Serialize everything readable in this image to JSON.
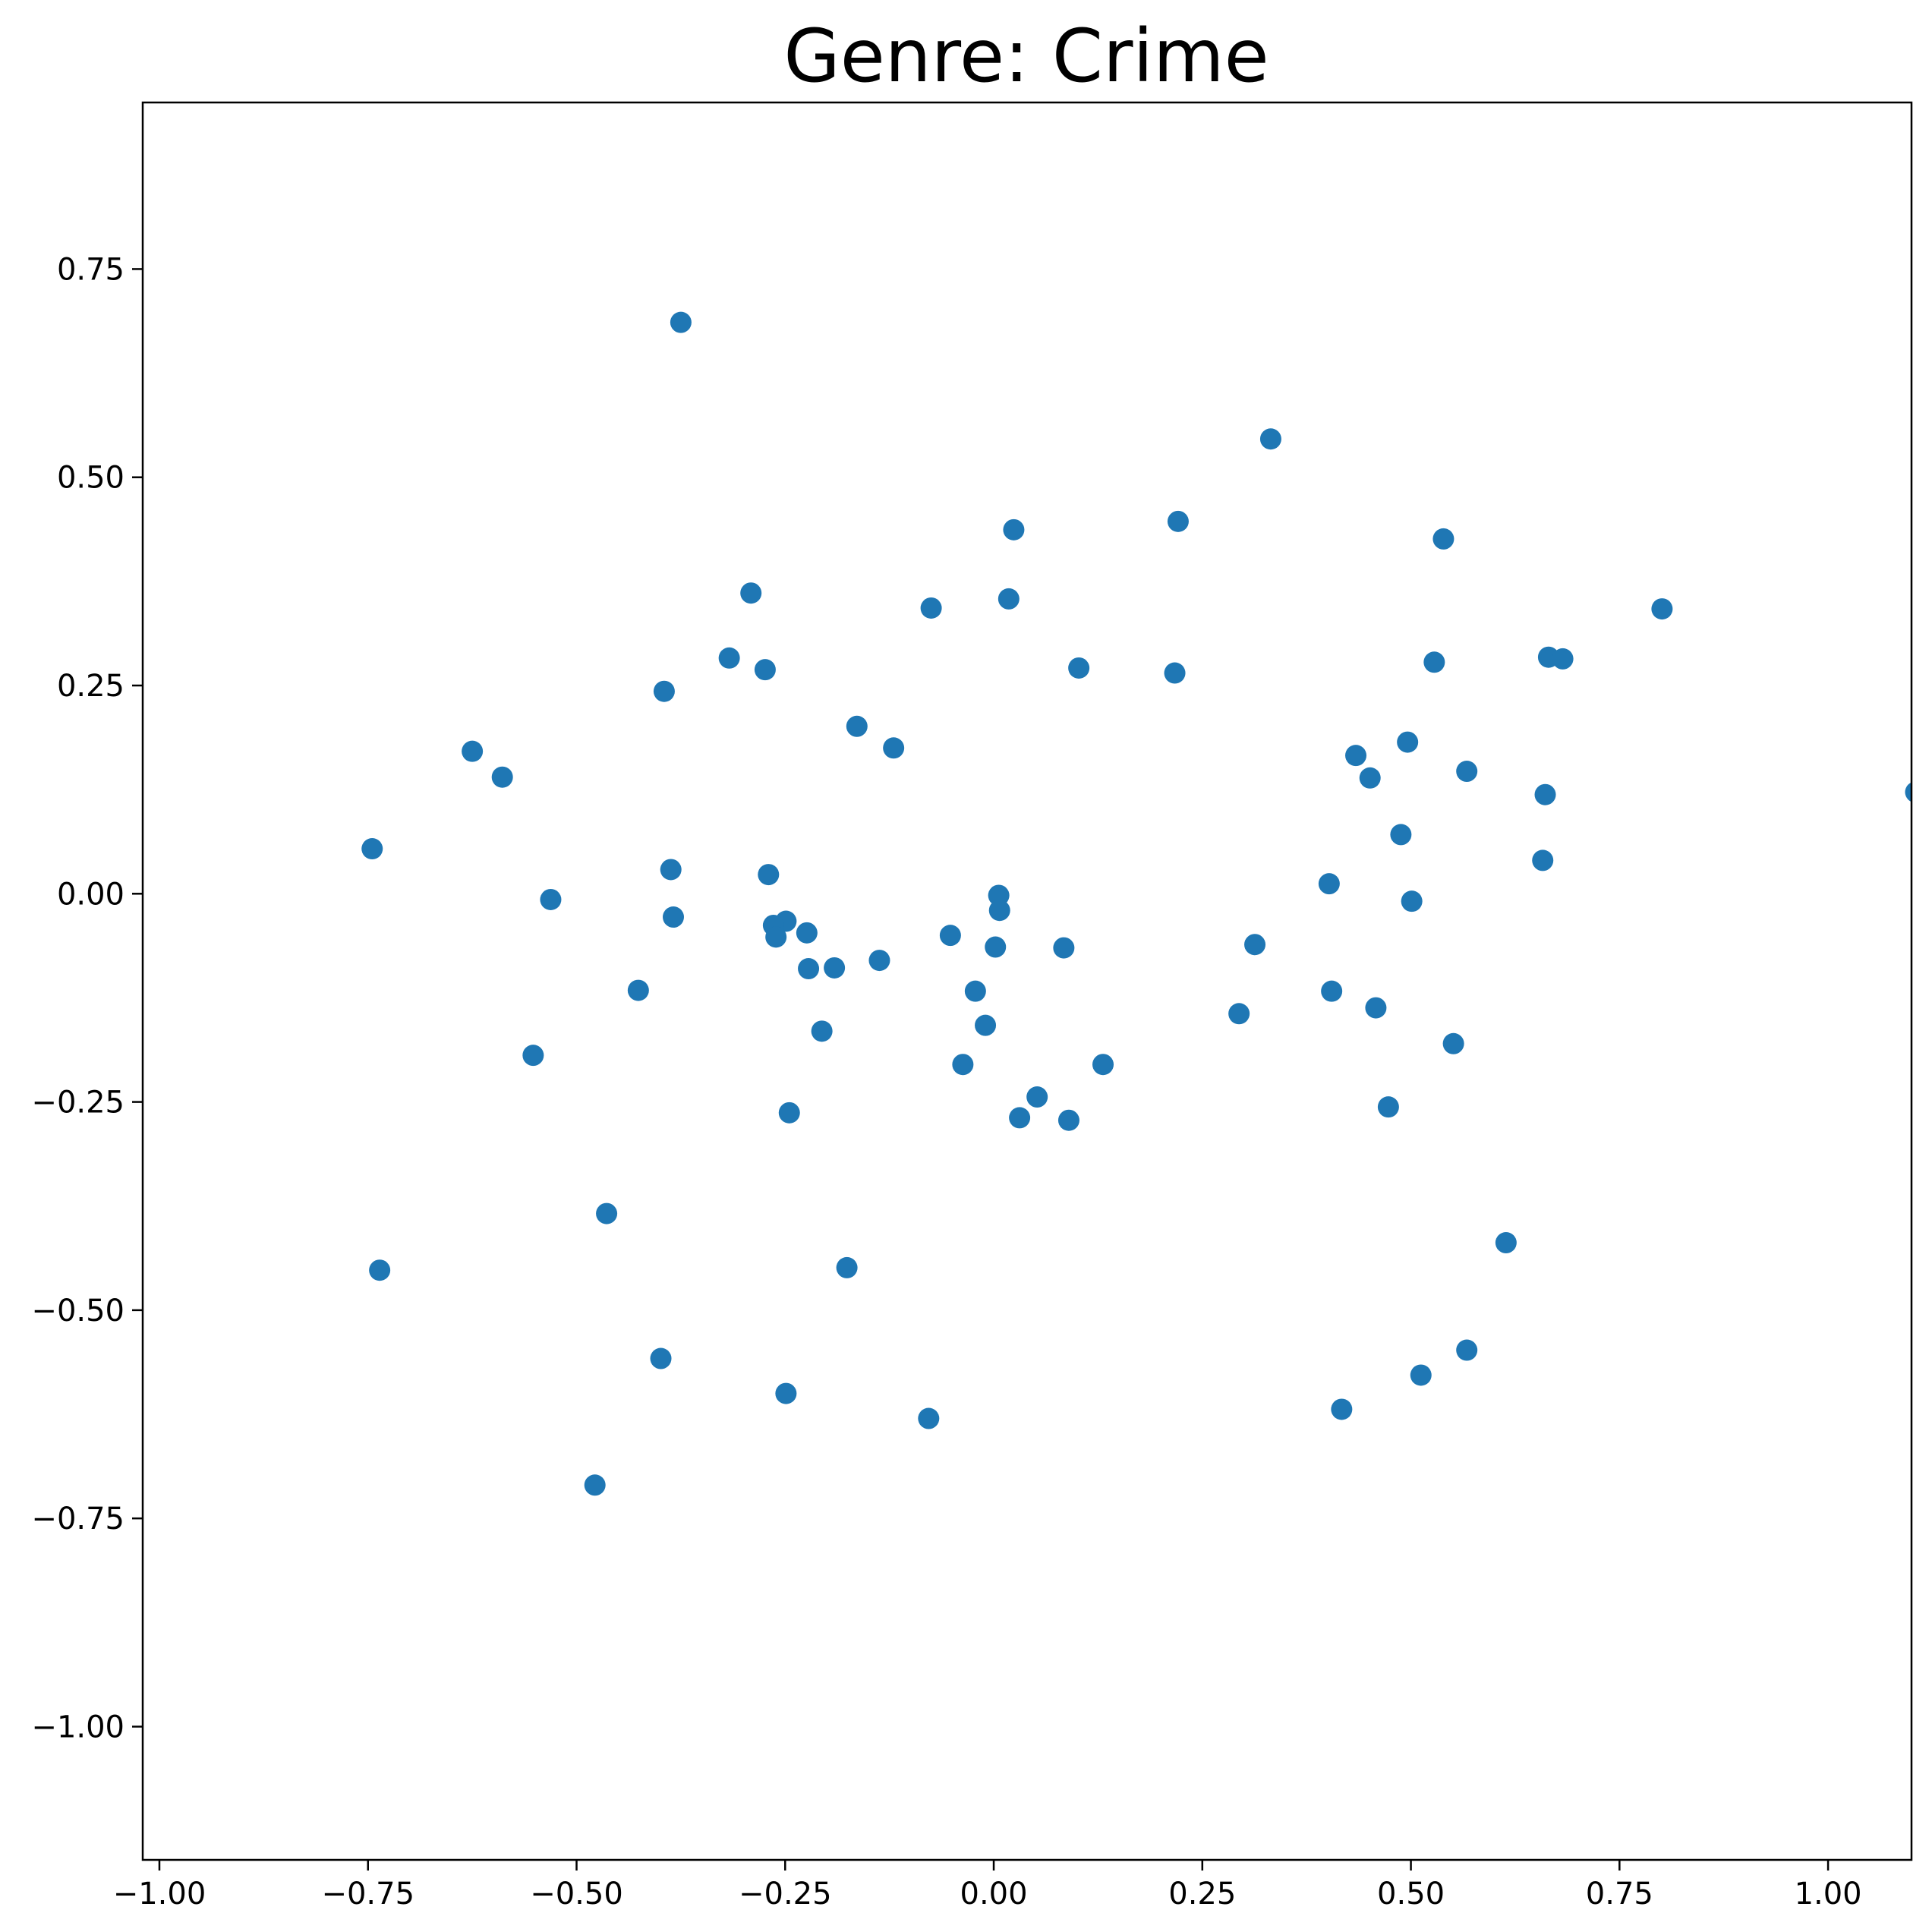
{
  "chart_data": {
    "type": "scatter",
    "title": "Genre: Crime",
    "xlabel": "",
    "ylabel": "",
    "xlim": [
      -1.02,
      1.1
    ],
    "ylim": [
      -1.16,
      0.95
    ],
    "x_ticks": [
      -1.0,
      -0.75,
      -0.5,
      -0.25,
      0.0,
      0.25,
      0.5,
      0.75,
      1.0
    ],
    "x_tick_labels": [
      "−1.00",
      "−0.75",
      "−0.50",
      "−0.25",
      "0.00",
      "0.25",
      "0.50",
      "0.75",
      "1.00"
    ],
    "y_ticks": [
      0.75,
      0.5,
      0.25,
      0.0,
      -0.25,
      -0.5,
      -0.75,
      -1.0
    ],
    "y_tick_labels": [
      "0.75",
      "0.50",
      "0.25",
      "0.00",
      "−0.25",
      "−0.50",
      "−0.75",
      "−1.00"
    ],
    "grid": false,
    "marker_color": "#1f77b4",
    "points": [
      {
        "x": -0.375,
        "y": 0.686
      },
      {
        "x": 0.332,
        "y": 0.546
      },
      {
        "x": 0.221,
        "y": 0.447
      },
      {
        "x": 0.024,
        "y": 0.437
      },
      {
        "x": 0.539,
        "y": 0.426
      },
      {
        "x": -0.291,
        "y": 0.361
      },
      {
        "x": 0.018,
        "y": 0.354
      },
      {
        "x": -0.075,
        "y": 0.343
      },
      {
        "x": 0.801,
        "y": 0.342
      },
      {
        "x": -0.317,
        "y": 0.283
      },
      {
        "x": 0.665,
        "y": 0.284
      },
      {
        "x": 0.682,
        "y": 0.282
      },
      {
        "x": 0.528,
        "y": 0.278
      },
      {
        "x": -0.274,
        "y": 0.269
      },
      {
        "x": 0.102,
        "y": 0.271
      },
      {
        "x": 0.217,
        "y": 0.265
      },
      {
        "x": -0.395,
        "y": 0.243
      },
      {
        "x": -0.164,
        "y": 0.201
      },
      {
        "x": -0.12,
        "y": 0.175
      },
      {
        "x": -0.625,
        "y": 0.171
      },
      {
        "x": 0.496,
        "y": 0.182
      },
      {
        "x": 0.434,
        "y": 0.166
      },
      {
        "x": 0.567,
        "y": 0.147
      },
      {
        "x": -0.589,
        "y": 0.14
      },
      {
        "x": 0.451,
        "y": 0.139
      },
      {
        "x": 1.105,
        "y": 0.122
      },
      {
        "x": 0.661,
        "y": 0.119
      },
      {
        "x": 0.488,
        "y": 0.071
      },
      {
        "x": -0.745,
        "y": 0.054
      },
      {
        "x": 0.658,
        "y": 0.04
      },
      {
        "x": -0.387,
        "y": 0.029
      },
      {
        "x": -0.27,
        "y": 0.023
      },
      {
        "x": 0.402,
        "y": 0.012
      },
      {
        "x": 0.006,
        "y": -0.002
      },
      {
        "x": -0.531,
        "y": -0.007
      },
      {
        "x": 0.501,
        "y": -0.009
      },
      {
        "x": 0.007,
        "y": -0.02
      },
      {
        "x": -0.384,
        "y": -0.028
      },
      {
        "x": -0.249,
        "y": -0.033
      },
      {
        "x": -0.264,
        "y": -0.038
      },
      {
        "x": -0.224,
        "y": -0.047
      },
      {
        "x": -0.261,
        "y": -0.052
      },
      {
        "x": -0.052,
        "y": -0.05
      },
      {
        "x": 0.313,
        "y": -0.061
      },
      {
        "x": 0.002,
        "y": -0.064
      },
      {
        "x": 0.084,
        "y": -0.065
      },
      {
        "x": -0.137,
        "y": -0.08
      },
      {
        "x": -0.191,
        "y": -0.089
      },
      {
        "x": -0.222,
        "y": -0.09
      },
      {
        "x": -0.426,
        "y": -0.116
      },
      {
        "x": -0.022,
        "y": -0.117
      },
      {
        "x": 0.405,
        "y": -0.117
      },
      {
        "x": 0.458,
        "y": -0.137
      },
      {
        "x": 0.294,
        "y": -0.144
      },
      {
        "x": -0.01,
        "y": -0.158
      },
      {
        "x": -0.206,
        "y": -0.165
      },
      {
        "x": 0.551,
        "y": -0.18
      },
      {
        "x": -0.552,
        "y": -0.194
      },
      {
        "x": -0.037,
        "y": -0.205
      },
      {
        "x": 0.131,
        "y": -0.205
      },
      {
        "x": 0.052,
        "y": -0.244
      },
      {
        "x": 0.473,
        "y": -0.256
      },
      {
        "x": -0.245,
        "y": -0.263
      },
      {
        "x": 0.031,
        "y": -0.269
      },
      {
        "x": 0.09,
        "y": -0.272
      },
      {
        "x": -0.464,
        "y": -0.384
      },
      {
        "x": 0.614,
        "y": -0.419
      },
      {
        "x": -0.736,
        "y": -0.452
      },
      {
        "x": -0.176,
        "y": -0.449
      },
      {
        "x": 0.567,
        "y": -0.548
      },
      {
        "x": -0.399,
        "y": -0.558
      },
      {
        "x": 0.512,
        "y": -0.578
      },
      {
        "x": -0.249,
        "y": -0.6
      },
      {
        "x": 0.417,
        "y": -0.619
      },
      {
        "x": -0.078,
        "y": -0.63
      },
      {
        "x": -0.478,
        "y": -0.71
      }
    ]
  }
}
